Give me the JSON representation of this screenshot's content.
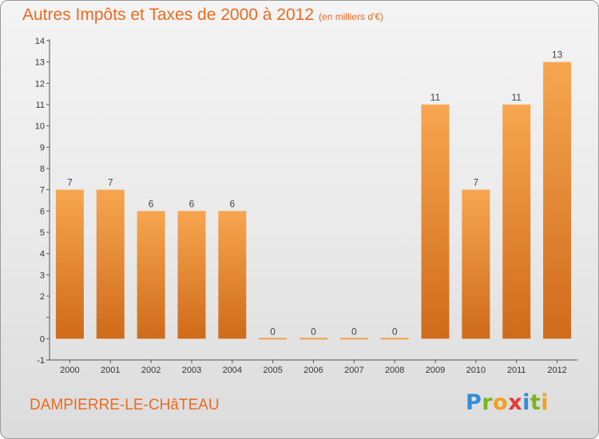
{
  "chart_data": {
    "type": "bar",
    "title": "Autres Impôts et Taxes de 2000 à 2012",
    "subtitle": "(en milliers d'€)",
    "categories": [
      "2000",
      "2001",
      "2002",
      "2003",
      "2004",
      "2005",
      "2006",
      "2007",
      "2008",
      "2009",
      "2010",
      "2011",
      "2012"
    ],
    "values": [
      7,
      7,
      6,
      6,
      6,
      0,
      0,
      0,
      0,
      11,
      7,
      11,
      13
    ],
    "data_labels": [
      "7",
      "7",
      "6",
      "6",
      "6",
      "0",
      "0",
      "0",
      "0",
      "11",
      "7",
      "11",
      "13"
    ],
    "ylim": [
      -1,
      14
    ],
    "yticks": [
      "-1",
      "0",
      "",
      "2",
      "3",
      "4",
      "5",
      "6",
      "7",
      "8",
      "9",
      "10",
      "11",
      "12",
      "13",
      "14"
    ],
    "grid": false,
    "bar_color": "#ef9a45",
    "legend": "none"
  },
  "footer": {
    "town": "DAMPIERRE-LE-CHâTEAU",
    "brand_letters": [
      "P",
      "r",
      "o",
      "x",
      "i",
      "t",
      "i"
    ]
  },
  "colors": {
    "accent": "#ee6a1e"
  }
}
